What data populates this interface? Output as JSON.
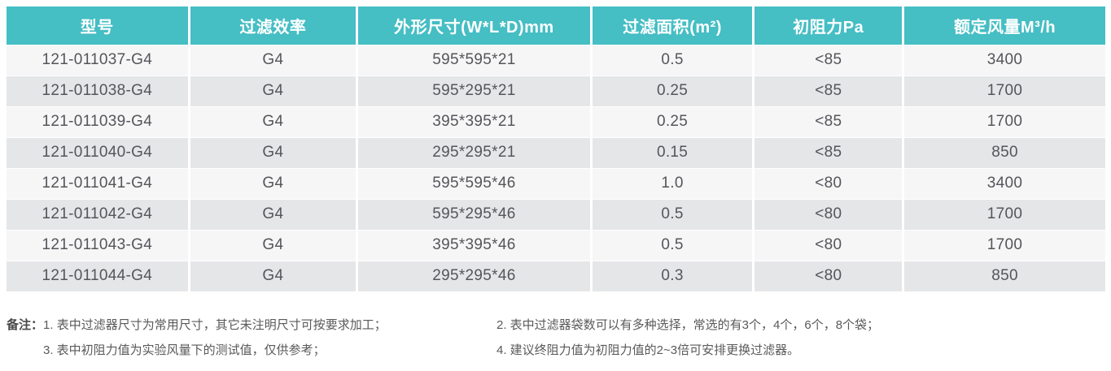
{
  "table": {
    "headers": [
      "型号",
      "过滤效率",
      "外形尺寸(W*L*D)mm",
      "过滤面积(m²)",
      "初阻力Pa",
      "额定风量M³/h"
    ],
    "rows": [
      [
        "121-011037-G4",
        "G4",
        "595*595*21",
        "0.5",
        "<85",
        "3400"
      ],
      [
        "121-011038-G4",
        "G4",
        "595*295*21",
        "0.25",
        "<85",
        "1700"
      ],
      [
        "121-011039-G4",
        "G4",
        "395*395*21",
        "0.25",
        "<85",
        "1700"
      ],
      [
        "121-011040-G4",
        "G4",
        "295*295*21",
        "0.15",
        "<85",
        "850"
      ],
      [
        "121-011041-G4",
        "G4",
        "595*595*46",
        "1.0",
        "<80",
        "3400"
      ],
      [
        "121-011042-G4",
        "G4",
        "595*295*46",
        "0.5",
        "<80",
        "1700"
      ],
      [
        "121-011043-G4",
        "G4",
        "395*395*46",
        "0.5",
        "<80",
        "1700"
      ],
      [
        "121-011044-G4",
        "G4",
        "295*295*46",
        "0.3",
        "<80",
        "850"
      ]
    ]
  },
  "notes": {
    "label": "备注：",
    "items": [
      "1. 表中过滤器尺寸为常用尺寸，其它未注明尺寸可按要求加工；",
      "2. 表中过滤器袋数可以有多种选择，常选的有3个，4个，6个，8个袋；",
      "3. 表中初阻力值为实验风量下的测试值，仅供参考；",
      "4. 建议终阻力值为初阻力值的2~3倍可安排更换过滤器。"
    ]
  },
  "colors": {
    "header_bg": "#45BEC4",
    "row_light": "#F6F6F7",
    "row_dark": "#E5E6E8",
    "cell_text": "#55555A",
    "note_text": "#595959"
  }
}
